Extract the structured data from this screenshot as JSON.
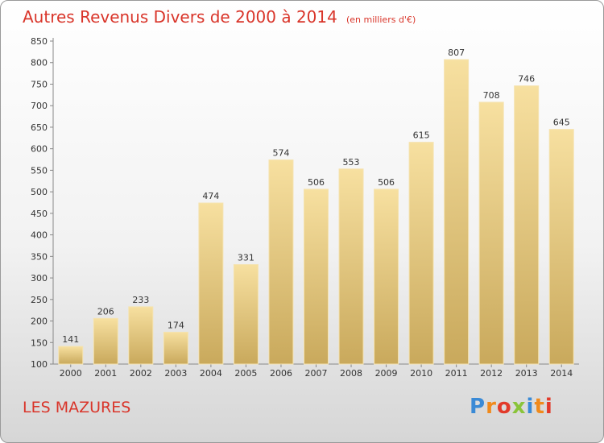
{
  "chart_data": {
    "type": "bar",
    "title": "Autres Revenus Divers de 2000 à 2014",
    "subtitle": "(en milliers d'€)",
    "categories": [
      "2000",
      "2001",
      "2002",
      "2003",
      "2004",
      "2005",
      "2006",
      "2007",
      "2008",
      "2009",
      "2010",
      "2011",
      "2012",
      "2013",
      "2014"
    ],
    "values": [
      141,
      206,
      233,
      174,
      474,
      331,
      574,
      506,
      553,
      506,
      615,
      807,
      708,
      746,
      645
    ],
    "ylim": [
      100,
      850
    ],
    "yticks": [
      100,
      150,
      200,
      250,
      300,
      350,
      400,
      450,
      500,
      550,
      600,
      650,
      700,
      750,
      800,
      850
    ],
    "grid": false,
    "bar_color": "#e8cd80"
  },
  "footer": {
    "location": "LES MAZURES",
    "brand": "Proxiti",
    "brand_colors": [
      "#3a8ad6",
      "#f08a1c",
      "#e23a2a",
      "#8ac43a",
      "#3a8ad6",
      "#f08a1c",
      "#e23a2a"
    ]
  }
}
